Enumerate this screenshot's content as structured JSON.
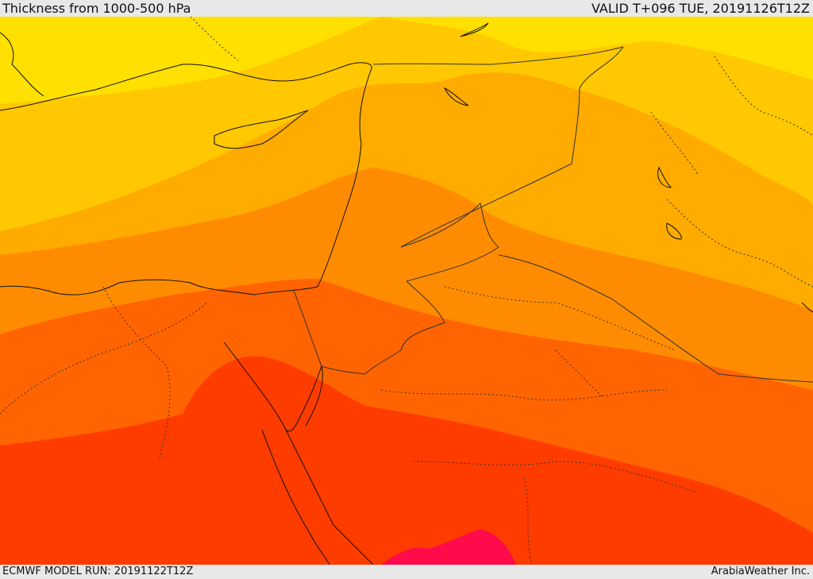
{
  "header": {
    "title": "Thickness from 1000-500 hPa",
    "valid": "VALID T+096 TUE, 20191126T12Z"
  },
  "footer": {
    "run": "ECMWF MODEL RUN: 20191122T12Z",
    "credit": "ArabiaWeather Inc."
  },
  "colors": {
    "band1": "#ffe000",
    "band2": "#ffc800",
    "band3": "#ffab00",
    "band4": "#ff8c00",
    "band5": "#ff6400",
    "band6": "#ff3c00",
    "band7": "#ff0a4a",
    "coast": "#111111",
    "border": "#333333"
  }
}
